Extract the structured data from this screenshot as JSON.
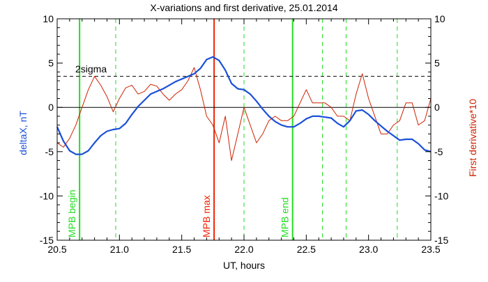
{
  "chart_data": {
    "type": "line",
    "title": "X-variations and first derivative, 25.01.2014",
    "xlabel": "UT, hours",
    "ylabel_left": "deltaX, nT",
    "ylabel_right": "First derivative*10",
    "xlim": [
      20.5,
      23.5
    ],
    "ylim": [
      -15,
      10
    ],
    "x_ticks": [
      20.5,
      21.0,
      21.5,
      22.0,
      22.5,
      23.0,
      23.5
    ],
    "x_tick_labels": [
      "20.5",
      "21.0",
      "21.5",
      "22.0",
      "22.5",
      "23.0",
      "23.5"
    ],
    "y_ticks": [
      -15,
      -10,
      -5,
      0,
      5,
      10
    ],
    "y_tick_labels": [
      "-15",
      "-10",
      "-5",
      "0",
      "5",
      "10"
    ],
    "zero_line": 0,
    "sigma_line": {
      "label": "2sigma",
      "value": 3.5
    },
    "series": [
      {
        "name": "deltaX",
        "color": "#1a4fd8",
        "x": [
          20.5,
          20.55,
          20.6,
          20.65,
          20.7,
          20.75,
          20.8,
          20.85,
          20.9,
          20.95,
          21.0,
          21.05,
          21.1,
          21.15,
          21.2,
          21.25,
          21.3,
          21.35,
          21.4,
          21.45,
          21.5,
          21.55,
          21.6,
          21.65,
          21.7,
          21.75,
          21.8,
          21.85,
          21.9,
          21.95,
          22.0,
          22.05,
          22.1,
          22.15,
          22.2,
          22.25,
          22.3,
          22.35,
          22.4,
          22.45,
          22.5,
          22.55,
          22.6,
          22.65,
          22.7,
          22.75,
          22.8,
          22.85,
          22.9,
          22.95,
          23.0,
          23.05,
          23.1,
          23.15,
          23.2,
          23.25,
          23.3,
          23.35,
          23.4,
          23.45,
          23.5
        ],
        "y": [
          -2.2,
          -3.8,
          -4.9,
          -5.3,
          -5.3,
          -4.9,
          -4.0,
          -3.2,
          -2.7,
          -2.5,
          -2.4,
          -1.8,
          -0.8,
          0.1,
          0.8,
          1.5,
          1.8,
          2.1,
          2.5,
          2.9,
          3.2,
          3.5,
          3.8,
          4.4,
          5.4,
          5.7,
          5.3,
          4.2,
          2.7,
          2.1,
          2.0,
          1.5,
          0.7,
          -0.2,
          -1.0,
          -1.6,
          -2.0,
          -2.2,
          -2.2,
          -1.8,
          -1.3,
          -1.0,
          -1.0,
          -1.1,
          -1.2,
          -1.8,
          -2.2,
          -1.5,
          -0.4,
          -0.3,
          -0.8,
          -1.5,
          -2.1,
          -2.7,
          -3.2,
          -3.7,
          -3.6,
          -3.6,
          -4.1,
          -4.8,
          -5.0
        ]
      },
      {
        "name": "First derivative*10",
        "color": "#cc2200",
        "x": [
          20.5,
          20.55,
          20.6,
          20.65,
          20.7,
          20.75,
          20.8,
          20.85,
          20.9,
          20.95,
          21.0,
          21.05,
          21.1,
          21.15,
          21.2,
          21.25,
          21.3,
          21.35,
          21.4,
          21.45,
          21.5,
          21.55,
          21.6,
          21.65,
          21.7,
          21.75,
          21.8,
          21.85,
          21.9,
          21.95,
          22.0,
          22.05,
          22.1,
          22.15,
          22.2,
          22.25,
          22.3,
          22.35,
          22.4,
          22.45,
          22.5,
          22.55,
          22.6,
          22.65,
          22.7,
          22.75,
          22.8,
          22.85,
          22.9,
          22.95,
          23.0,
          23.05,
          23.1,
          23.15,
          23.2,
          23.25,
          23.3,
          23.35,
          23.4,
          23.45,
          23.5
        ],
        "y": [
          -4.0,
          -4.5,
          -3.5,
          -2.0,
          0.0,
          2.0,
          3.5,
          2.5,
          1.2,
          -0.5,
          1.0,
          2.2,
          2.5,
          1.5,
          1.8,
          2.6,
          2.4,
          1.5,
          0.8,
          1.5,
          2.0,
          3.0,
          4.5,
          2.0,
          -1.0,
          -2.0,
          -4.0,
          -1.0,
          -6.0,
          -3.0,
          0.0,
          -2.0,
          -4.0,
          -3.0,
          -1.5,
          -1.0,
          -1.5,
          -1.5,
          -1.0,
          0.5,
          2.0,
          0.5,
          0.5,
          0.5,
          0.0,
          -1.0,
          -1.0,
          -1.5,
          1.5,
          3.8,
          1.0,
          -1.0,
          -3.0,
          -3.0,
          -2.0,
          -1.5,
          0.5,
          0.5,
          -2.0,
          -1.5,
          1.0
        ]
      }
    ],
    "markers": [
      {
        "x": 20.68,
        "label": "MPB begin",
        "color": "#22dd22",
        "style": "solid"
      },
      {
        "x": 21.76,
        "label": "MPB max",
        "color": "#ee2200",
        "style": "solid"
      },
      {
        "x": 22.39,
        "label": "MPB end",
        "color": "#22dd22",
        "style": "solid"
      }
    ],
    "dashed_markers": [
      20.97,
      22.0,
      22.63,
      22.82,
      23.23
    ],
    "dashed_marker_color": "#22dd22",
    "colors": {
      "left_axis_label": "#1a4fd8",
      "right_axis_label": "#cc2200",
      "axes": "#000000"
    }
  }
}
